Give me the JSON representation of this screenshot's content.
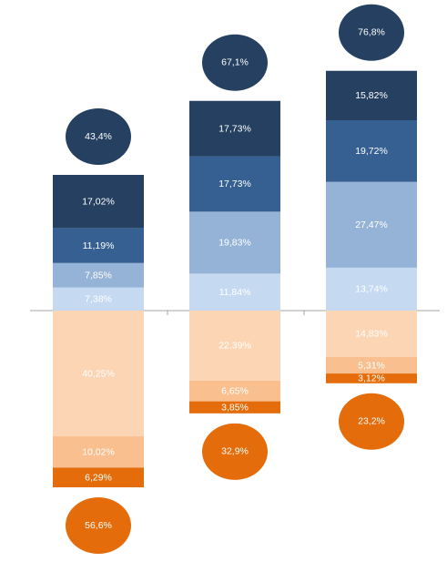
{
  "chart_data": {
    "type": "diverging-stacked-bar",
    "series": [
      {
        "color": "#c5d9f1",
        "side": "above",
        "values": [
          7.38,
          11.84,
          13.74
        ],
        "value_labels": [
          "7,38%",
          "11,84%",
          "13,74%"
        ]
      },
      {
        "color": "#95b3d7",
        "side": "above",
        "values": [
          7.85,
          19.83,
          27.47
        ],
        "value_labels": [
          "7,85%",
          "19,83%",
          "27,47%"
        ]
      },
      {
        "color": "#366092",
        "side": "above",
        "values": [
          11.19,
          17.73,
          19.72
        ],
        "value_labels": [
          "11,19%",
          "17,73%",
          "19,72%"
        ]
      },
      {
        "color": "#254061",
        "side": "above",
        "values": [
          17.02,
          17.73,
          15.82
        ],
        "value_labels": [
          "17,02%",
          "17,73%",
          "15,82%"
        ]
      },
      {
        "color": "#fcd5b4",
        "side": "below",
        "values": [
          40.25,
          22.39,
          14.83
        ],
        "value_labels": [
          "40,25%",
          "22,39%",
          "14,83%"
        ]
      },
      {
        "color": "#fabf8f",
        "side": "below",
        "values": [
          10.02,
          6.65,
          5.31
        ],
        "value_labels": [
          "10,02%",
          "6,65%",
          "5,31%"
        ]
      },
      {
        "color": "#e46c0a",
        "side": "below",
        "values": [
          6.29,
          3.85,
          3.12
        ],
        "value_labels": [
          "6,29%",
          "3,85%",
          "3,12%"
        ]
      }
    ],
    "totals": [
      {
        "color": "#254061",
        "side": "above",
        "values": [
          43.4,
          67.1,
          76.8
        ],
        "value_labels": [
          "43,4%",
          "67,1%",
          "76,8%"
        ]
      },
      {
        "color": "#e46c0a",
        "side": "below",
        "values": [
          56.6,
          32.9,
          23.2
        ],
        "value_labels": [
          "56,6%",
          "32,9%",
          "23,2%"
        ]
      }
    ]
  }
}
